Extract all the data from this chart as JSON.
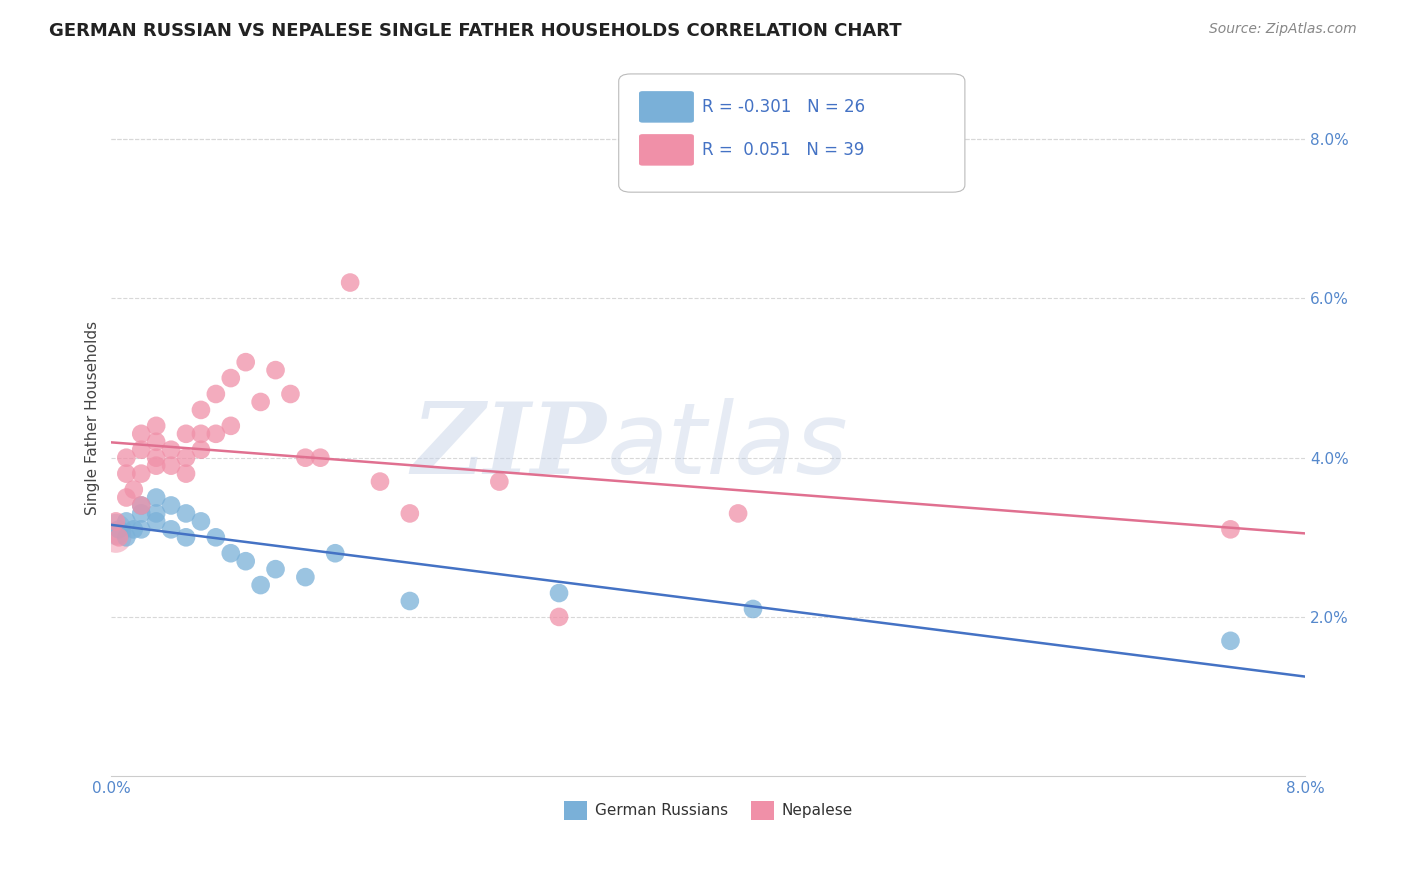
{
  "title": "GERMAN RUSSIAN VS NEPALESE SINGLE FATHER HOUSEHOLDS CORRELATION CHART",
  "source": "Source: ZipAtlas.com",
  "ylabel": "Single Father Households",
  "watermark_zip": "ZIP",
  "watermark_atlas": "atlas",
  "xlim": [
    0.0,
    0.08
  ],
  "ylim": [
    0.0,
    0.09
  ],
  "legend_r_blue": "-0.301",
  "legend_n_blue": "26",
  "legend_r_pink": "0.051",
  "legend_n_pink": "39",
  "blue_color": "#a8c8e8",
  "pink_color": "#f0a8b8",
  "blue_line_color": "#4472c4",
  "pink_line_color": "#e07090",
  "blue_scatter_color": "#7ab0d8",
  "pink_scatter_color": "#f090a8",
  "background_color": "#ffffff",
  "grid_color": "#d8d8d8",
  "blue_x": [
    0.0005,
    0.001,
    0.001,
    0.0015,
    0.002,
    0.002,
    0.002,
    0.003,
    0.003,
    0.003,
    0.004,
    0.004,
    0.005,
    0.005,
    0.006,
    0.007,
    0.008,
    0.009,
    0.01,
    0.011,
    0.013,
    0.015,
    0.02,
    0.03,
    0.043,
    0.075
  ],
  "blue_y": [
    0.031,
    0.032,
    0.03,
    0.031,
    0.034,
    0.033,
    0.031,
    0.035,
    0.033,
    0.032,
    0.034,
    0.031,
    0.033,
    0.03,
    0.032,
    0.03,
    0.028,
    0.027,
    0.024,
    0.026,
    0.025,
    0.028,
    0.022,
    0.023,
    0.021,
    0.017
  ],
  "pink_x": [
    0.0003,
    0.0005,
    0.001,
    0.001,
    0.001,
    0.0015,
    0.002,
    0.002,
    0.002,
    0.002,
    0.003,
    0.003,
    0.003,
    0.003,
    0.004,
    0.004,
    0.005,
    0.005,
    0.005,
    0.006,
    0.006,
    0.006,
    0.007,
    0.007,
    0.008,
    0.008,
    0.009,
    0.01,
    0.011,
    0.012,
    0.013,
    0.014,
    0.016,
    0.018,
    0.02,
    0.026,
    0.03,
    0.042,
    0.075
  ],
  "pink_y": [
    0.032,
    0.03,
    0.035,
    0.038,
    0.04,
    0.036,
    0.038,
    0.041,
    0.043,
    0.034,
    0.044,
    0.042,
    0.04,
    0.039,
    0.041,
    0.039,
    0.043,
    0.04,
    0.038,
    0.043,
    0.041,
    0.046,
    0.048,
    0.043,
    0.05,
    0.044,
    0.052,
    0.047,
    0.051,
    0.048,
    0.04,
    0.04,
    0.062,
    0.037,
    0.033,
    0.037,
    0.02,
    0.033,
    0.031
  ],
  "legend_box_color": "#ffffff",
  "legend_box_edge": "#cccccc"
}
